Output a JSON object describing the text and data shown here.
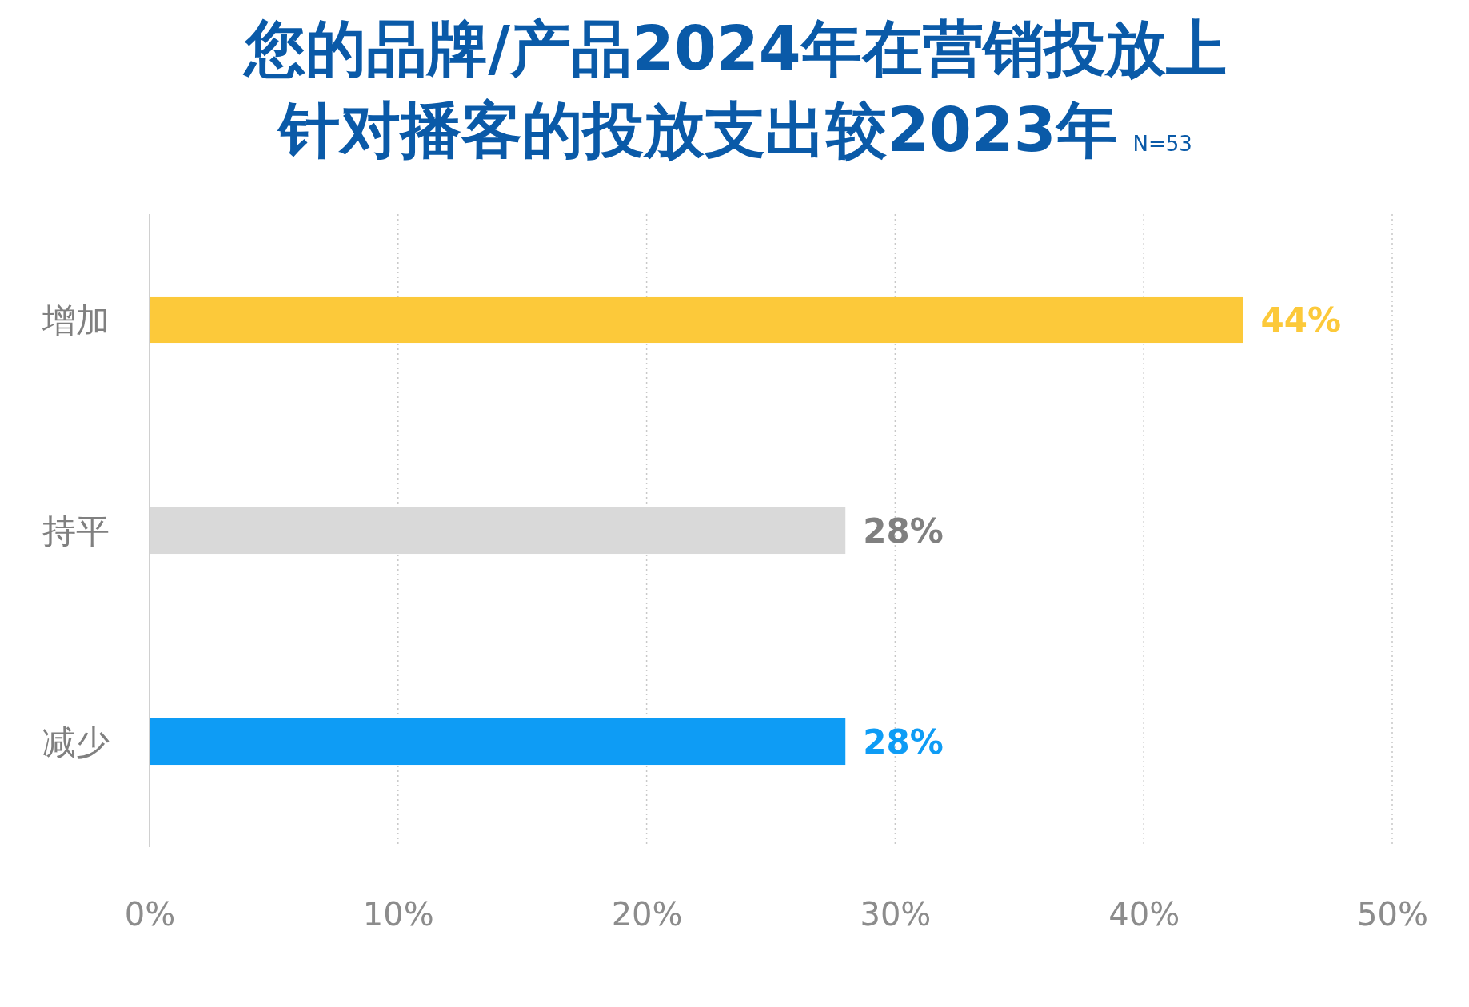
{
  "chart_data": {
    "type": "bar",
    "orientation": "horizontal",
    "title": "您的品牌/产品2024年在营销投放上针对播客的投放支出较2023年",
    "subtitle": "N=53",
    "categories": [
      "增加",
      "持平",
      "减少"
    ],
    "values": [
      44,
      28,
      28
    ],
    "colors": [
      "#fcc93a",
      "#d9d9d9",
      "#0e9cf5"
    ],
    "value_labels": [
      "44%",
      "28%",
      "28%"
    ],
    "xlim": [
      0,
      50
    ],
    "xticks": [
      {
        "value": 0,
        "label": "0%"
      },
      {
        "value": 10,
        "label": "10%"
      },
      {
        "value": 20,
        "label": "20%"
      },
      {
        "value": 30,
        "label": "30%"
      },
      {
        "value": 40,
        "label": "40%"
      },
      {
        "value": 50,
        "label": "50%"
      }
    ],
    "grid": "x"
  }
}
